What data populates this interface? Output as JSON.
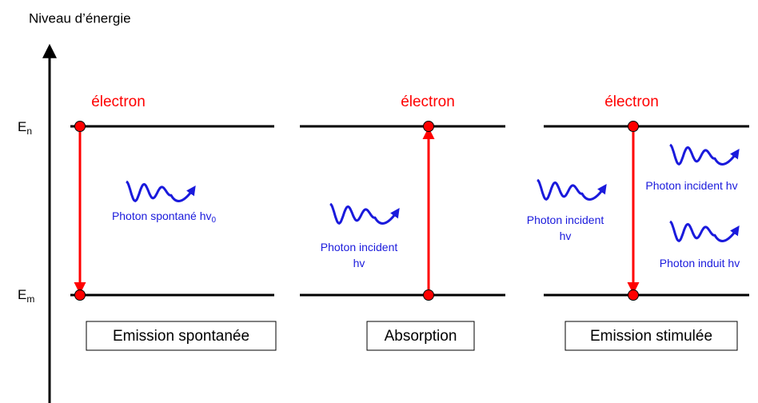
{
  "axis_label": "Niveau d’énergie",
  "levels": [
    {
      "symbol": "E",
      "subscript": "n"
    },
    {
      "symbol": "E",
      "subscript": "m"
    }
  ],
  "panels": [
    {
      "electron": "électron",
      "photons": [
        {
          "lines": [
            "Photon spontané hv"
          ],
          "subscript": "0"
        }
      ],
      "caption": "Emission spontanée"
    },
    {
      "electron": "électron",
      "photons": [
        {
          "lines": [
            "Photon incident",
            "hv"
          ]
        }
      ],
      "caption": "Absorption"
    },
    {
      "electron": "électron",
      "photons": [
        {
          "lines": [
            "Photon incident",
            "hv"
          ]
        },
        {
          "lines": [
            "Photon incident hv"
          ]
        },
        {
          "lines": [
            "Photon induit hv"
          ]
        }
      ],
      "caption": "Emission stimulée"
    }
  ]
}
